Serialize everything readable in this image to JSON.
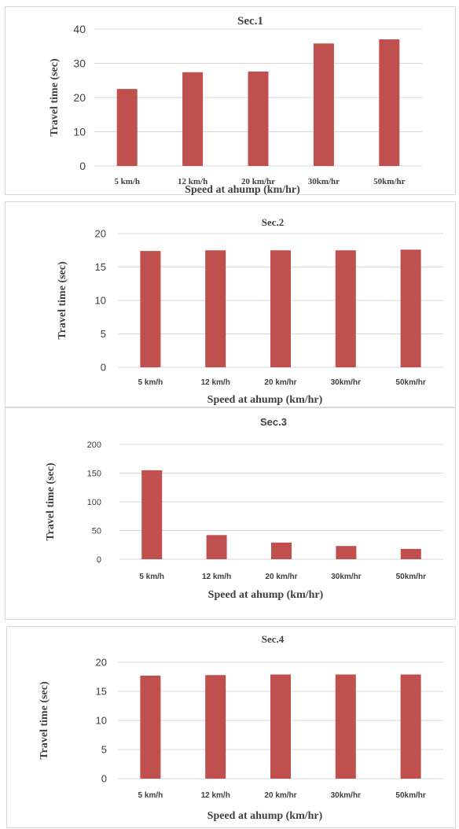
{
  "chart_data": [
    {
      "type": "bar",
      "title": "Sec.1",
      "ylabel": "Travel time (sec)",
      "xlabel": "Speed at ahump (km/hr)",
      "categories": [
        "5 km/h",
        "12 km/h",
        "20 km/hr",
        "30km/hr",
        "50km/hr"
      ],
      "values": [
        22.5,
        27.4,
        27.6,
        35.8,
        37.0
      ],
      "ylim": [
        0,
        40
      ],
      "yticks": [
        "0",
        "10",
        "20",
        "30",
        "40"
      ],
      "grid": true,
      "bar_color": "#c0504d"
    },
    {
      "type": "bar",
      "title": "Sec.2",
      "ylabel": "Travel time (sec)",
      "xlabel": "Speed at ahump (km/hr)",
      "categories": [
        "5 km/h",
        "12 km/h",
        "20 km/hr",
        "30km/hr",
        "50km/hr"
      ],
      "values": [
        17.4,
        17.5,
        17.5,
        17.5,
        17.6
      ],
      "ylim": [
        0,
        20
      ],
      "yticks": [
        "0",
        "5",
        "10",
        "15",
        "20"
      ],
      "grid": true,
      "bar_color": "#c0504d"
    },
    {
      "type": "bar",
      "title": "Sec.3",
      "ylabel": "Travel time (sec)",
      "xlabel": "Speed at ahump (km/hr)",
      "categories": [
        "5 km/h",
        "12 km/h",
        "20 km/hr",
        "30km/hr",
        "50km/hr"
      ],
      "values": [
        155,
        42,
        29,
        23,
        18
      ],
      "ylim": [
        0,
        200
      ],
      "yticks": [
        "0",
        "50",
        "100",
        "150",
        "200"
      ],
      "grid": true,
      "bar_color": "#c0504d"
    },
    {
      "type": "bar",
      "title": "Sec.4",
      "ylabel": "Travel time (sec)",
      "xlabel": "Speed at ahump (km/hr)",
      "categories": [
        "5 km/h",
        "12 km/h",
        "20 km/hr",
        "30km/hr",
        "50km/hr"
      ],
      "values": [
        17.7,
        17.8,
        17.9,
        17.9,
        17.9
      ],
      "ylim": [
        0,
        20
      ],
      "yticks": [
        "0",
        "5",
        "10",
        "15",
        "20"
      ],
      "grid": true,
      "bar_color": "#c0504d"
    }
  ]
}
